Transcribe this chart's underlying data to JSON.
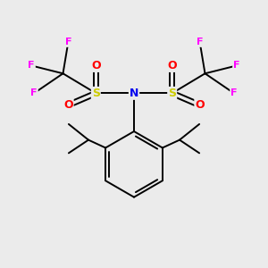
{
  "background_color": "#ebebeb",
  "fig_size": [
    3.0,
    3.0
  ],
  "dpi": 100,
  "atom_colors": {
    "C": "#000000",
    "N": "#0000ee",
    "S": "#cccc00",
    "O": "#ff0000",
    "F": "#ff00ff"
  },
  "bond_color": "#000000",
  "bond_width": 1.4,
  "font_size_atoms": 9,
  "font_size_F": 8
}
